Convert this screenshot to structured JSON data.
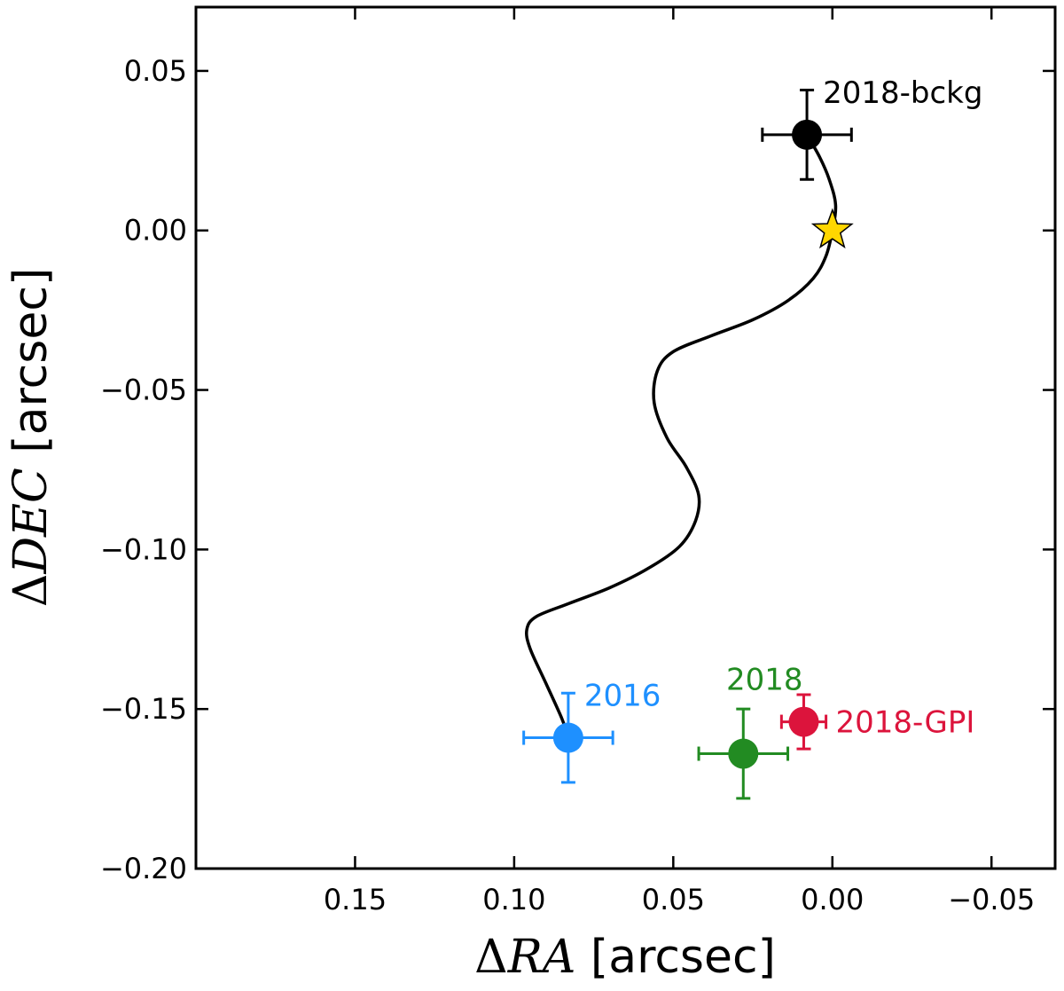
{
  "chart_data": {
    "type": "scatter",
    "title": "",
    "xlabel": {
      "prefix": "Δ",
      "math": "RA",
      "suffix": " [arcsec]"
    },
    "ylabel": {
      "prefix": "Δ",
      "math": "DEC",
      "suffix": " [arcsec]"
    },
    "xlim": [
      0.2,
      -0.07
    ],
    "ylim": [
      -0.2,
      0.07
    ],
    "xticks": [
      0.15,
      0.1,
      0.05,
      0.0,
      -0.05
    ],
    "xtick_labels": [
      "0.15",
      "0.10",
      "0.05",
      "0.00",
      "−0.05"
    ],
    "yticks": [
      0.05,
      0.0,
      -0.05,
      -0.1,
      -0.15,
      -0.2
    ],
    "ytick_labels": [
      "0.05",
      "0.00",
      "−0.05",
      "−0.10",
      "−0.15",
      "−0.20"
    ],
    "grid": false,
    "points": [
      {
        "name": "2016",
        "x": 0.083,
        "y": -0.159,
        "xerr": 0.014,
        "yerr": 0.014,
        "color": "#1e90ff",
        "label_pos": "upper-right"
      },
      {
        "name": "2018",
        "x": 0.028,
        "y": -0.164,
        "xerr": 0.014,
        "yerr": 0.014,
        "color": "#228b22",
        "label_pos": "above"
      },
      {
        "name": "2018-GPI",
        "x": 0.009,
        "y": -0.154,
        "xerr": 0.007,
        "yerr": 0.0085,
        "color": "#dc143c",
        "label_pos": "right"
      },
      {
        "name": "2018-bckg",
        "x": 0.008,
        "y": 0.03,
        "xerr": 0.014,
        "yerr": 0.014,
        "color": "#000000",
        "label_pos": "upper-right"
      }
    ],
    "star": {
      "name": "host star",
      "x": 0.0,
      "y": 0.0,
      "color": "#ffd700"
    },
    "track": {
      "name": "background-motion-track",
      "color": "#000000",
      "points": [
        [
          0.083,
          -0.159
        ],
        [
          0.085,
          -0.153
        ],
        [
          0.09,
          -0.142
        ],
        [
          0.095,
          -0.131
        ],
        [
          0.096,
          -0.125
        ],
        [
          0.093,
          -0.121
        ],
        [
          0.083,
          -0.117
        ],
        [
          0.07,
          -0.112
        ],
        [
          0.058,
          -0.106
        ],
        [
          0.048,
          -0.099
        ],
        [
          0.043,
          -0.091
        ],
        [
          0.042,
          -0.083
        ],
        [
          0.046,
          -0.074
        ],
        [
          0.052,
          -0.065
        ],
        [
          0.056,
          -0.054
        ],
        [
          0.055,
          -0.044
        ],
        [
          0.05,
          -0.038
        ],
        [
          0.038,
          -0.033
        ],
        [
          0.025,
          -0.028
        ],
        [
          0.014,
          -0.022
        ],
        [
          0.006,
          -0.015
        ],
        [
          0.002,
          -0.008
        ],
        [
          0.0,
          0.0
        ],
        [
          -0.001,
          0.008
        ],
        [
          0.001,
          0.016
        ],
        [
          0.004,
          0.023
        ],
        [
          0.008,
          0.03
        ]
      ]
    }
  }
}
